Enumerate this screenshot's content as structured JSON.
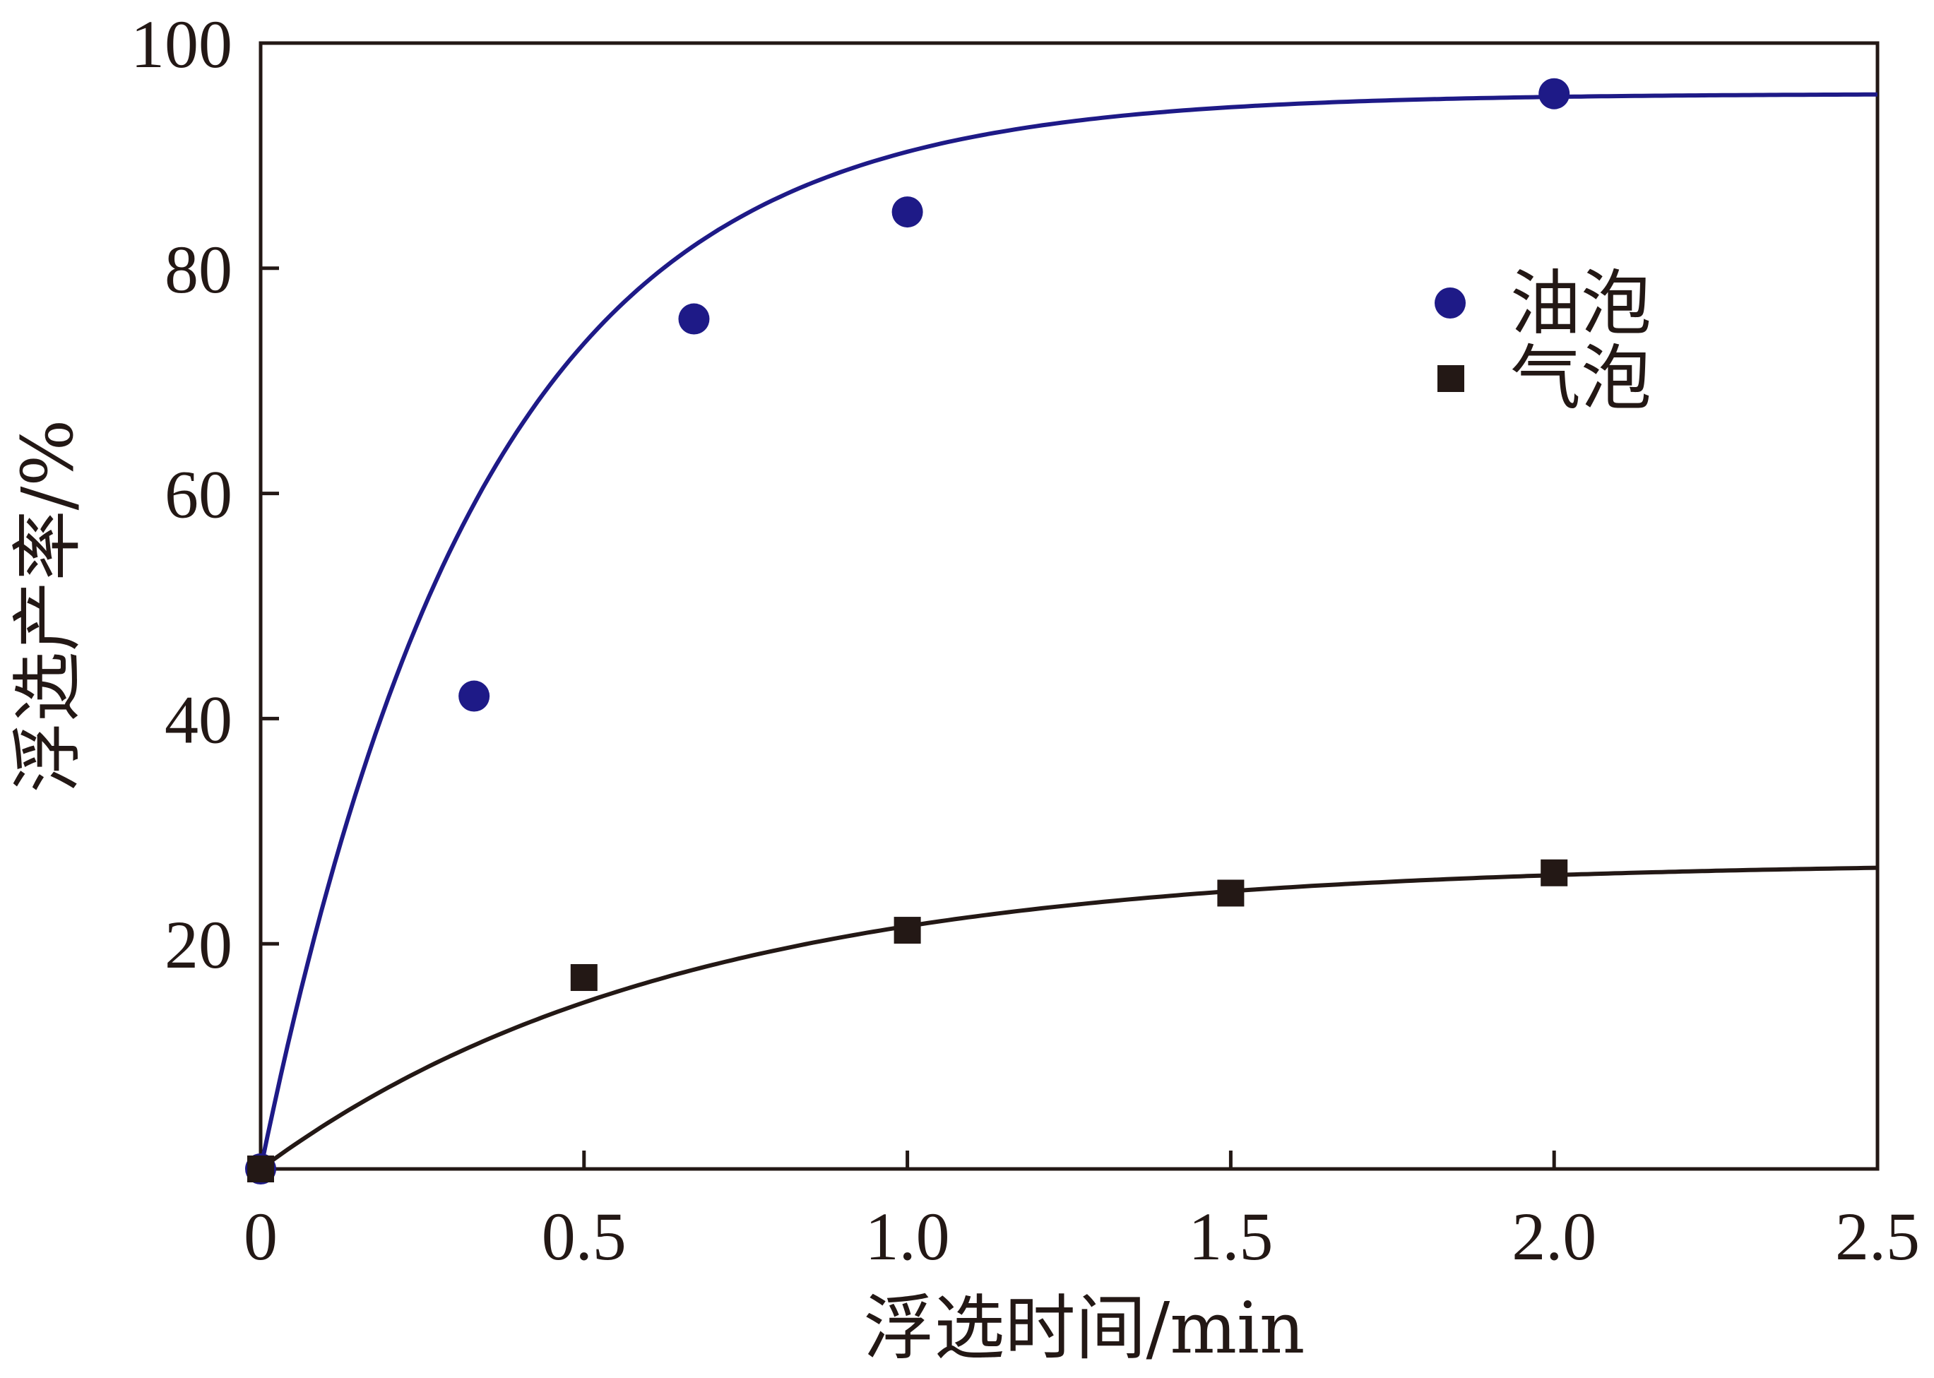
{
  "chart_data": {
    "type": "scatter",
    "xlabel": "浮选时间/min",
    "ylabel": "浮选产率/%",
    "xlim": [
      0,
      2.5
    ],
    "ylim": [
      0,
      100
    ],
    "x_ticks": [
      0,
      0.5,
      1.0,
      1.5,
      2.0,
      2.5
    ],
    "x_tick_labels": [
      "0",
      "0.5",
      "1.0",
      "1.5",
      "2.0",
      "2.5"
    ],
    "y_ticks": [
      20,
      40,
      60,
      80,
      100
    ],
    "y_tick_labels": [
      "20",
      "40",
      "60",
      "80",
      "100"
    ],
    "legend_position": "right",
    "series": [
      {
        "name": "油泡",
        "marker": "circle",
        "color": "#1e1a87",
        "points": [
          [
            0,
            0
          ],
          [
            0.33,
            42
          ],
          [
            0.67,
            75.5
          ],
          [
            1.0,
            85
          ],
          [
            2.0,
            95.5
          ]
        ],
        "fit": {
          "kind": "exponential",
          "ymax": 95.5,
          "rate": 2.92
        }
      },
      {
        "name": "气泡",
        "marker": "square",
        "color": "#231815",
        "points": [
          [
            0,
            0
          ],
          [
            0.5,
            17
          ],
          [
            1.0,
            21.2
          ],
          [
            1.5,
            24.5
          ],
          [
            2.0,
            26.3
          ]
        ],
        "fit": {
          "kind": "exponential",
          "ymax": 27.3,
          "rate": 1.56
        }
      }
    ]
  }
}
